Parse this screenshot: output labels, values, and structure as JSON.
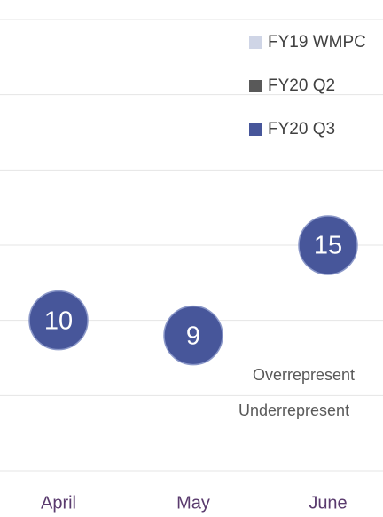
{
  "chart_data": {
    "type": "scatter",
    "categories": [
      "April",
      "May",
      "June"
    ],
    "series": [
      {
        "name": "FY19 WMPC",
        "color": "#cfd5e6",
        "values": [
          null,
          null,
          null
        ]
      },
      {
        "name": "FY20 Q2",
        "color": "#595959",
        "values": [
          null,
          null,
          null
        ]
      },
      {
        "name": "FY20 Q3",
        "color": "#47569a",
        "values": [
          10,
          9,
          15
        ]
      }
    ],
    "ylim": [
      0,
      30
    ],
    "yticks": [
      0,
      5,
      10,
      15,
      20,
      25,
      30
    ],
    "grid": true,
    "legend": "top-right",
    "annotations": [
      "Overrepresent",
      "Underrepresent"
    ]
  }
}
